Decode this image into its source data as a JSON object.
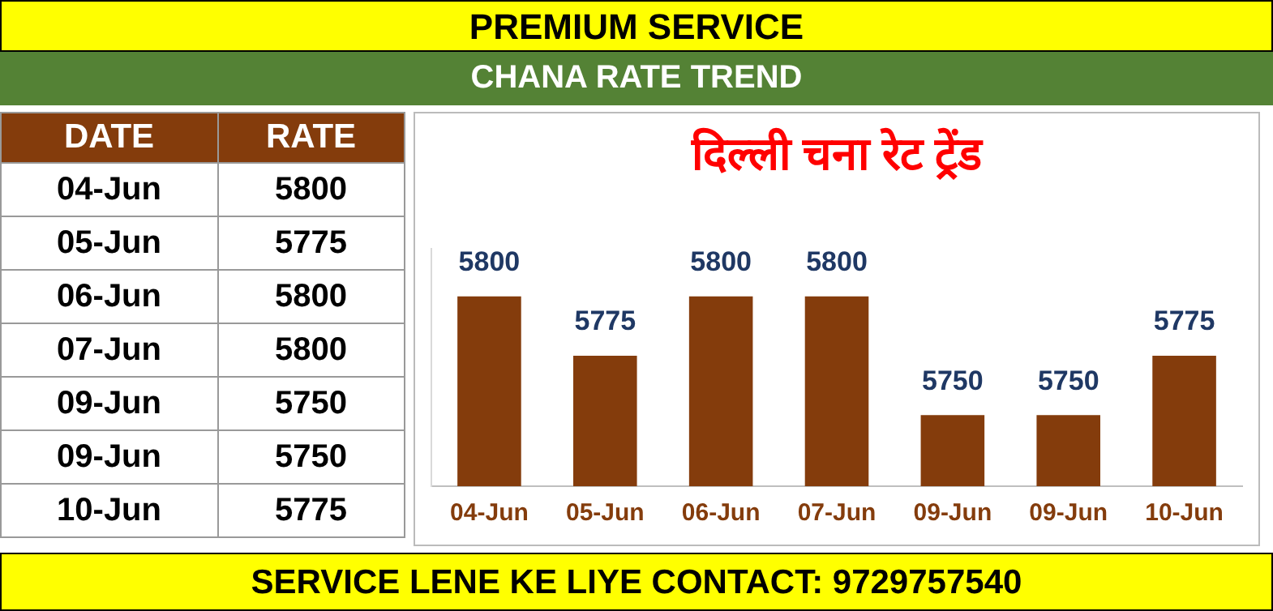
{
  "chart_data": [
    {
      "type": "other",
      "annotations": [
        "DATE",
        "RATE",
        "04-Jun",
        "5800",
        "05-Jun",
        "5775",
        "06-Jun",
        "5800",
        "07-Jun",
        "5800",
        "09-Jun",
        "5750",
        "09-Jun",
        "5750",
        "10-Jun",
        "5775"
      ]
    },
    {
      "type": "bar",
      "title": "दिल्ली चना रेट ट्रेंड",
      "categories": [
        "04-Jun",
        "05-Jun",
        "06-Jun",
        "07-Jun",
        "09-Jun",
        "09-Jun",
        "10-Jun"
      ],
      "values": [
        5800,
        5775,
        5800,
        5800,
        5750,
        5750,
        5775
      ],
      "color": "#843c0c",
      "ylim": [
        5720,
        5820
      ],
      "tick_labels": "x",
      "grid": false,
      "legend": false,
      "data_labels": true,
      "annotations": [
        "PREMIUM SERVICE",
        "CHANA RATE TREND",
        "SERVICE LENE KE LIYE CONTACT: 9729757540"
      ]
    }
  ]
}
